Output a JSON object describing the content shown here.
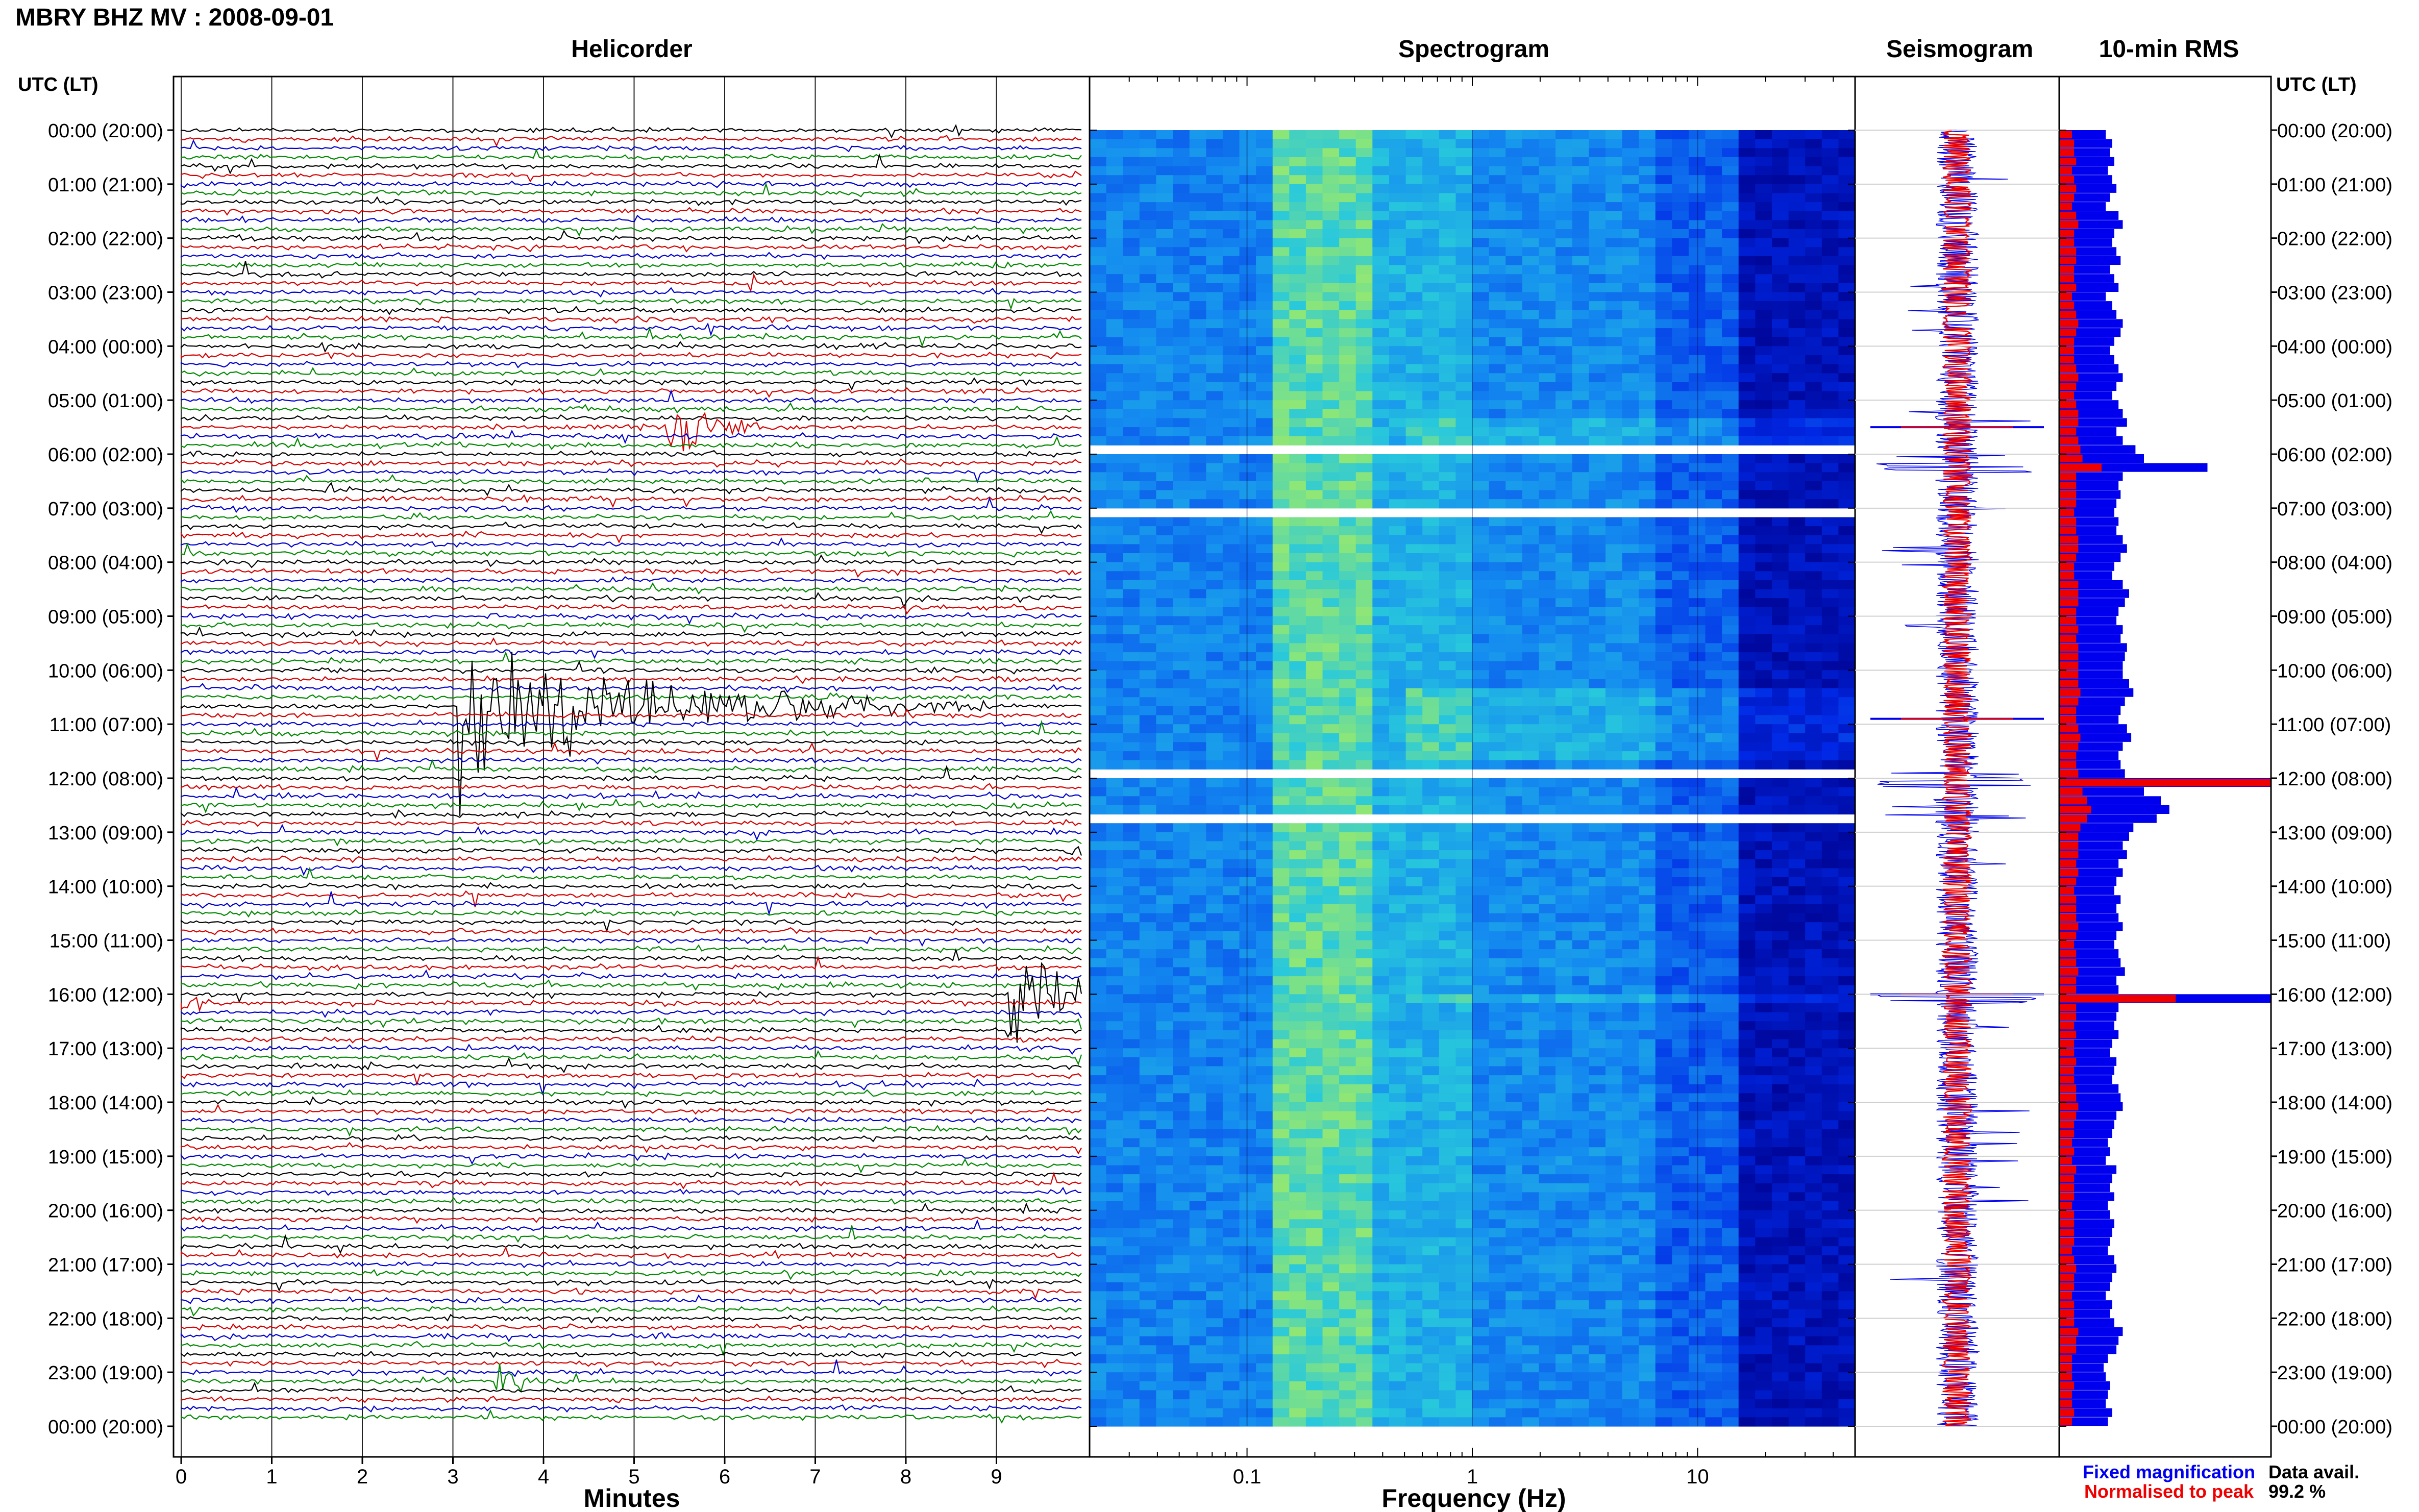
{
  "title": "MBRY BHZ MV : 2008-09-01",
  "panels": {
    "helicorder": "Helicorder",
    "spectrogram": "Spectrogram",
    "seismogram": "Seismogram",
    "rms": "10-min RMS"
  },
  "time_axis_label": "UTC (LT)",
  "time_labels": [
    "00:00 (20:00)",
    "01:00 (21:00)",
    "02:00 (22:00)",
    "03:00 (23:00)",
    "04:00 (00:00)",
    "05:00 (01:00)",
    "06:00 (02:00)",
    "07:00 (03:00)",
    "08:00 (04:00)",
    "09:00 (05:00)",
    "10:00 (06:00)",
    "11:00 (07:00)",
    "12:00 (08:00)",
    "13:00 (09:00)",
    "14:00 (10:00)",
    "15:00 (11:00)",
    "16:00 (12:00)",
    "17:00 (13:00)",
    "18:00 (14:00)",
    "19:00 (15:00)",
    "20:00 (16:00)",
    "21:00 (17:00)",
    "22:00 (18:00)",
    "23:00 (19:00)",
    "00:00 (20:00)"
  ],
  "x_axes": {
    "minutes_label": "Minutes",
    "minutes_ticks": [
      "0",
      "1",
      "2",
      "3",
      "4",
      "5",
      "6",
      "7",
      "8",
      "9"
    ],
    "frequency_label": "Frequency (Hz)",
    "frequency_ticks": [
      "0.1",
      "1",
      "10"
    ]
  },
  "legend": {
    "fixed": "Fixed magnification",
    "normalised": "Normalised to peak",
    "fixed_color": "#0000ee",
    "normalised_color": "#ee0000"
  },
  "data_avail": {
    "label": "Data avail.",
    "value": "99.2 %"
  },
  "colors": {
    "trace_cycle": [
      "#000000",
      "#d40000",
      "#0000cc",
      "#008800"
    ]
  },
  "chart_data": {
    "type": "heatmap",
    "helicorder": {
      "minutes_per_line": 10,
      "lines": 144,
      "events": [
        {
          "hour": 5.5,
          "minute": 5.5,
          "amp": 1.0,
          "length": 1.5
        },
        {
          "hour": 10.67,
          "minute": 3.0,
          "amp": 2.5,
          "length": 6.0
        },
        {
          "hour": 16.0,
          "minute": 9.3,
          "amp": 2.2,
          "length": 1.2
        },
        {
          "hour": 23.17,
          "minute": 3.4,
          "amp": 0.7,
          "length": 0.5
        }
      ]
    },
    "spectrogram": {
      "freq_range_hz": [
        0.02,
        50
      ],
      "scale": "log",
      "gaps_hours": [
        [
          5.85,
          6.0
        ],
        [
          6.95,
          7.15
        ],
        [
          11.75,
          11.95
        ],
        [
          12.7,
          12.8
        ]
      ]
    },
    "rms": {
      "interval_min": 10,
      "fixed": [
        0.22,
        0.25,
        0.24,
        0.26,
        0.23,
        0.25,
        0.27,
        0.24,
        0.22,
        0.28,
        0.3,
        0.26,
        0.25,
        0.27,
        0.29,
        0.24,
        0.26,
        0.28,
        0.22,
        0.25,
        0.27,
        0.3,
        0.29,
        0.26,
        0.24,
        0.26,
        0.28,
        0.3,
        0.27,
        0.25,
        0.28,
        0.3,
        0.32,
        0.27,
        0.3,
        0.36,
        0.4,
        0.7,
        0.3,
        0.28,
        0.29,
        0.27,
        0.26,
        0.28,
        0.27,
        0.3,
        0.32,
        0.29,
        0.26,
        0.25,
        0.3,
        0.33,
        0.31,
        0.28,
        0.27,
        0.3,
        0.29,
        0.32,
        0.31,
        0.3,
        0.3,
        0.33,
        0.35,
        0.31,
        0.29,
        0.28,
        0.32,
        0.34,
        0.3,
        0.28,
        0.29,
        0.31,
        1.0,
        0.4,
        0.48,
        0.52,
        0.46,
        0.35,
        0.33,
        0.3,
        0.32,
        0.28,
        0.3,
        0.27,
        0.26,
        0.29,
        0.27,
        0.28,
        0.3,
        0.27,
        0.26,
        0.28,
        0.29,
        0.31,
        0.27,
        0.28,
        1.0,
        0.28,
        0.27,
        0.26,
        0.28,
        0.25,
        0.24,
        0.27,
        0.26,
        0.25,
        0.28,
        0.29,
        0.3,
        0.27,
        0.26,
        0.25,
        0.23,
        0.24,
        0.22,
        0.27,
        0.25,
        0.24,
        0.26,
        0.23,
        0.24,
        0.26,
        0.25,
        0.24,
        0.23,
        0.26,
        0.27,
        0.25,
        0.24,
        0.22,
        0.25,
        0.24,
        0.26,
        0.3,
        0.28,
        0.27,
        0.23,
        0.21,
        0.22,
        0.24,
        0.23,
        0.22,
        0.25,
        0.23
      ],
      "normalised": [
        0.06,
        0.07,
        0.07,
        0.08,
        0.06,
        0.07,
        0.08,
        0.07,
        0.06,
        0.08,
        0.09,
        0.07,
        0.07,
        0.08,
        0.08,
        0.07,
        0.07,
        0.08,
        0.06,
        0.07,
        0.08,
        0.09,
        0.08,
        0.07,
        0.07,
        0.07,
        0.08,
        0.09,
        0.08,
        0.07,
        0.08,
        0.09,
        0.09,
        0.08,
        0.09,
        0.1,
        0.11,
        0.2,
        0.08,
        0.08,
        0.08,
        0.08,
        0.07,
        0.08,
        0.08,
        0.09,
        0.09,
        0.08,
        0.07,
        0.07,
        0.09,
        0.09,
        0.09,
        0.08,
        0.08,
        0.09,
        0.08,
        0.09,
        0.09,
        0.09,
        0.09,
        0.09,
        0.1,
        0.09,
        0.08,
        0.08,
        0.09,
        0.1,
        0.09,
        0.08,
        0.08,
        0.09,
        1.0,
        0.11,
        0.13,
        0.15,
        0.13,
        0.1,
        0.09,
        0.09,
        0.09,
        0.08,
        0.09,
        0.08,
        0.07,
        0.08,
        0.08,
        0.08,
        0.09,
        0.08,
        0.07,
        0.08,
        0.08,
        0.09,
        0.08,
        0.08,
        0.55,
        0.08,
        0.08,
        0.07,
        0.08,
        0.07,
        0.07,
        0.08,
        0.07,
        0.07,
        0.08,
        0.08,
        0.09,
        0.08,
        0.07,
        0.07,
        0.06,
        0.07,
        0.06,
        0.08,
        0.07,
        0.07,
        0.07,
        0.06,
        0.07,
        0.07,
        0.07,
        0.07,
        0.06,
        0.07,
        0.08,
        0.07,
        0.07,
        0.06,
        0.07,
        0.07,
        0.07,
        0.09,
        0.08,
        0.08,
        0.06,
        0.06,
        0.06,
        0.07,
        0.06,
        0.06,
        0.07,
        0.06
      ]
    }
  }
}
